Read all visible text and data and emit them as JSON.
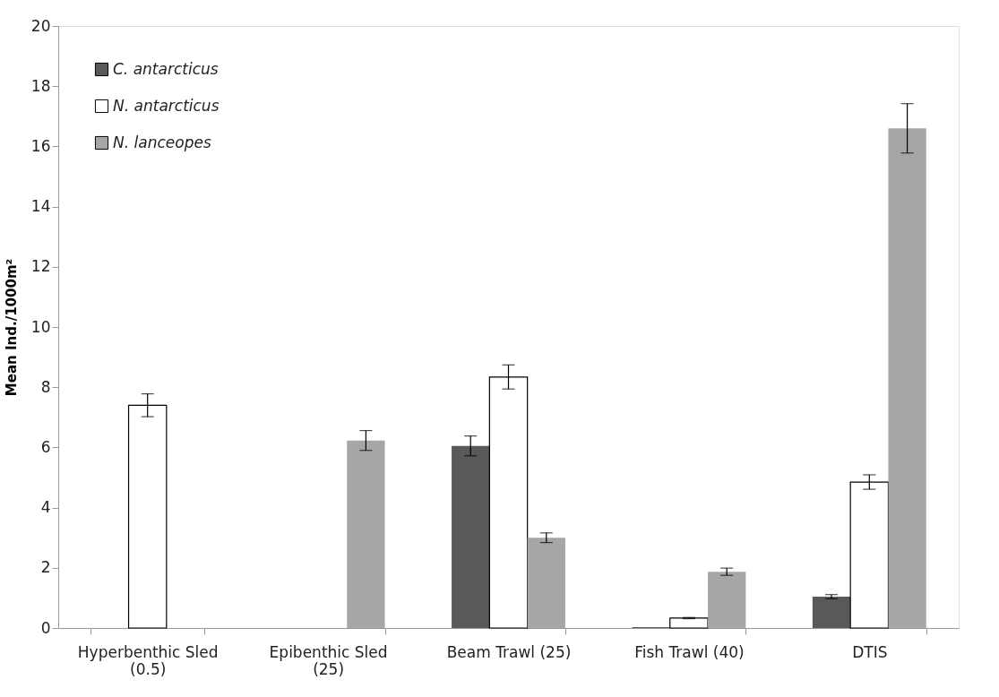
{
  "chart_data": {
    "type": "bar",
    "ylabel": "Mean Ind./1000m²",
    "categories": [
      "Hyperbenthic Sled (0.5)",
      "Epibenthic Sled (25)",
      "Beam Trawl (25)",
      "Fish Trawl (40)",
      "DTIS"
    ],
    "series": [
      {
        "name": "C. antarcticus",
        "color": "#595959",
        "values": [
          null,
          null,
          6.05,
          0.03,
          1.04
        ],
        "errors": [
          null,
          null,
          0.33,
          null,
          0.07
        ]
      },
      {
        "name": "N. antarcticus",
        "color": "#ffffff",
        "values": [
          7.4,
          null,
          8.34,
          0.33,
          4.85
        ],
        "errors": [
          0.38,
          null,
          0.4,
          0.02,
          0.24
        ]
      },
      {
        "name": "N. lanceopes",
        "color": "#a6a6a6",
        "values": [
          null,
          6.23,
          3.0,
          1.87,
          16.6
        ],
        "errors": [
          null,
          0.33,
          0.16,
          0.12,
          0.82
        ]
      }
    ],
    "ylim": [
      0,
      20
    ],
    "yticks": [
      0,
      2,
      4,
      6,
      8,
      10,
      12,
      14,
      16,
      18,
      20
    ],
    "grid": false,
    "legend": "top left"
  }
}
